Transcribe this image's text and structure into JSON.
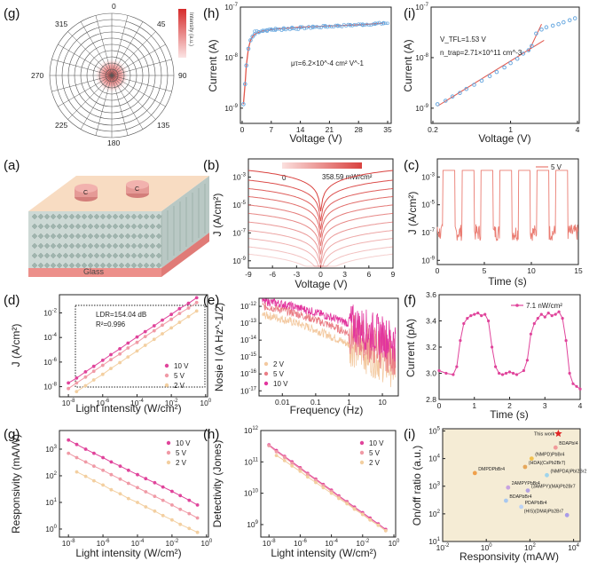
{
  "chart_data": [
    {
      "id": "g_top",
      "panel_label": "(g)",
      "type": "polar-heatmap",
      "angle_labels": [
        "0",
        "45",
        "90",
        "135",
        "180",
        "225",
        "270",
        "315"
      ],
      "colorbar_label": "Intensity (a.u.)",
      "colors": {
        "hot": "#d62b2b",
        "grid": "#555555"
      }
    },
    {
      "id": "h_top",
      "panel_label": "(h)",
      "type": "scatter",
      "xlabel": "Voltage (V)",
      "ylabel": "Current (A)",
      "xticks": [
        "0",
        "7",
        "14",
        "21",
        "28",
        "35"
      ],
      "yticks": [
        "10^-9",
        "10^-8",
        "10^-7"
      ],
      "xlim": [
        0,
        35
      ],
      "ylog": true,
      "annotation": "μτ=6.2×10^-4 cm² V^-1",
      "x": [
        0.3,
        0.7,
        1.0,
        1.5,
        2,
        2.5,
        3,
        4,
        5,
        6,
        7,
        8,
        10,
        12,
        14,
        17,
        20,
        23,
        26,
        29,
        32,
        34
      ],
      "y": [
        1.2e-09,
        3e-09,
        7e-09,
        1.5e-08,
        2.2e-08,
        2.6e-08,
        2.9e-08,
        3.2e-08,
        3.4e-08,
        3.5e-08,
        3.6e-08,
        3.7e-08,
        3.8e-08,
        3.9e-08,
        4e-08,
        4.1e-08,
        4.2e-08,
        4.3e-08,
        4.4e-08,
        4.5e-08,
        4.7e-08,
        4.8e-08
      ],
      "colors": {
        "point": "#6aa9e0",
        "fit": "#e2574c"
      }
    },
    {
      "id": "i_top",
      "panel_label": "(i)",
      "type": "scatter",
      "xlabel": "Voltage (V)",
      "ylabel": "Current (A)",
      "xticks": [
        "0.2",
        "1",
        "4"
      ],
      "yticks": [
        "10^-9",
        "10^-8",
        "10^-7"
      ],
      "xlim": [
        0.2,
        4
      ],
      "xlog": true,
      "ylog": true,
      "annotation_lines": [
        "V_TFL=1.53 V",
        "n_trap=2.71×10^11 cm^-3"
      ],
      "x": [
        0.22,
        0.26,
        0.3,
        0.35,
        0.4,
        0.47,
        0.55,
        0.65,
        0.75,
        0.88,
        1.0,
        1.15,
        1.3,
        1.45,
        1.55,
        1.7,
        1.9,
        2.1,
        2.4,
        2.7,
        3.0,
        3.4,
        3.8
      ],
      "y": [
        1.2e-09,
        1.4e-09,
        1.7e-09,
        2e-09,
        2.4e-09,
        2.9e-09,
        3.5e-09,
        4.3e-09,
        5.2e-09,
        6.4e-09,
        7.8e-09,
        9.5e-09,
        1.2e-08,
        1.4e-08,
        1.7e-08,
        3e-08,
        3.6e-08,
        4e-08,
        4.3e-08,
        4.6e-08,
        5e-08,
        5.5e-08,
        6e-08
      ],
      "colors": {
        "point": "#6aa9e0",
        "fit": "#e2574c"
      }
    },
    {
      "id": "a",
      "panel_label": "(a)",
      "type": "device-schematic",
      "electrode_labels": [
        "C",
        "C"
      ],
      "substrate_label": "Glass",
      "colors": {
        "top": "#f8dcc2",
        "perovskite": "#cdd9d5",
        "glass": "#f2a9a4",
        "electrode": "#e59a96"
      }
    },
    {
      "id": "b",
      "panel_label": "(b)",
      "type": "line",
      "xlabel": "Voltage (V)",
      "ylabel": "J (A/cm²)",
      "xticks": [
        "-9",
        "-6",
        "-3",
        "0",
        "3",
        "6",
        "9"
      ],
      "yticks": [
        "10^-9",
        "10^-7",
        "10^-5",
        "10^-3"
      ],
      "xlim": [
        -9,
        9
      ],
      "ylog": true,
      "colorbar_min": "0",
      "colorbar_max": "358.59 mW/cm²",
      "series": [
        {
          "y_at_9V": 3e-09
        },
        {
          "y_at_9V": 1e-08
        },
        {
          "y_at_9V": 4e-08
        },
        {
          "y_at_9V": 1.5e-07
        },
        {
          "y_at_9V": 6e-07
        },
        {
          "y_at_9V": 2.5e-06
        },
        {
          "y_at_9V": 1e-05
        },
        {
          "y_at_9V": 4e-05
        },
        {
          "y_at_9V": 0.00015
        },
        {
          "y_at_9V": 0.0006
        },
        {
          "y_at_9V": 0.003
        }
      ],
      "colors": {
        "line": "#d9423f"
      }
    },
    {
      "id": "c",
      "panel_label": "(c)",
      "type": "line",
      "xlabel": "Time (s)",
      "ylabel": "J (A/cm²)",
      "xticks": [
        "0",
        "5",
        "10",
        "15"
      ],
      "yticks": [
        "10^-9",
        "10^-7",
        "10^-5",
        "10^-3"
      ],
      "xlim": [
        0,
        15
      ],
      "ylog": true,
      "legend": [
        "5 V"
      ],
      "on_periods": [
        [
          0.6,
          1.9
        ],
        [
          2.6,
          3.9
        ],
        [
          4.6,
          5.9
        ],
        [
          6.6,
          7.9
        ],
        [
          8.6,
          9.9
        ],
        [
          10.6,
          11.9
        ],
        [
          12.6,
          13.9
        ]
      ],
      "on_value": 0.003,
      "off_value": 1e-07,
      "colors": {
        "line": "#ea7c72"
      }
    },
    {
      "id": "d",
      "panel_label": "(d)",
      "type": "scatter",
      "xlabel": "Light intensity (W/cm²)",
      "ylabel": "J (A/cm²)",
      "xticks": [
        "10^-8",
        "10^-6",
        "10^-4",
        "10^-2",
        "10^0"
      ],
      "yticks": [
        "10^-8",
        "10^-6",
        "10^-4",
        "10^-2"
      ],
      "xlog": true,
      "ylog": true,
      "annotation_lines": [
        "LDR=154.04 dB",
        "R²=0.996"
      ],
      "series": [
        {
          "name": "10 V",
          "x": [
            1e-08,
            3e-08,
            1e-07,
            3e-07,
            1e-06,
            3e-06,
            1e-05,
            3e-05,
            0.0001,
            0.0003,
            0.001,
            0.003,
            0.01,
            0.03,
            0.1,
            0.3
          ],
          "y": [
            2e-08,
            5e-08,
            1.6e-07,
            4.5e-07,
            1.4e-06,
            4e-06,
            1.2e-05,
            3.5e-05,
            0.00011,
            0.0003,
            0.0009,
            0.0026,
            0.0075,
            0.022,
            0.06,
            0.17
          ]
        },
        {
          "name": "5 V",
          "x": [
            1e-08,
            3e-08,
            1e-07,
            3e-07,
            1e-06,
            3e-06,
            1e-05,
            3e-05,
            0.0001,
            0.0003,
            0.001,
            0.003,
            0.01,
            0.03,
            0.1,
            0.3
          ],
          "y": [
            7e-09,
            2e-08,
            6e-08,
            1.8e-07,
            5.5e-07,
            1.6e-06,
            4.5e-06,
            1.4e-05,
            4e-05,
            0.00012,
            0.00035,
            0.001,
            0.003,
            0.009,
            0.025,
            0.07
          ]
        },
        {
          "name": "2 V",
          "x": [
            3e-08,
            1e-07,
            3e-07,
            1e-06,
            3e-06,
            1e-05,
            3e-05,
            0.0001,
            0.0003,
            0.001,
            0.003,
            0.01,
            0.03,
            0.1,
            0.3
          ],
          "y": [
            4e-09,
            1.2e-08,
            3.5e-08,
            1e-07,
            3e-07,
            9e-07,
            2.6e-06,
            8e-06,
            2.3e-05,
            7e-05,
            0.0002,
            0.0006,
            0.0017,
            0.005,
            0.014
          ]
        }
      ],
      "colors": {
        "10 V": "#e0449b",
        "5 V": "#f09aa6",
        "2 V": "#f3cfa0"
      }
    },
    {
      "id": "e",
      "panel_label": "(e)",
      "type": "line",
      "xlabel": "Frequency (Hz)",
      "ylabel": "Nosie I (A Hz^-1/2)",
      "xticks": [
        "0.01",
        "0.1",
        "1",
        "10"
      ],
      "yticks": [
        "10^-17",
        "10^-16",
        "10^-15",
        "10^-14",
        "10^-13",
        "10^-12"
      ],
      "xlog": true,
      "ylog": true,
      "series": [
        {
          "name": "2 V"
        },
        {
          "name": "5 V"
        },
        {
          "name": "10 V"
        }
      ],
      "colors": {
        "2 V": "#f3c9a0",
        "5 V": "#ea7e86",
        "10 V": "#e2359e"
      }
    },
    {
      "id": "f",
      "panel_label": "(f)",
      "type": "line",
      "xlabel": "Time (s)",
      "ylabel": "Current (pA)",
      "xticks": [
        "0",
        "1",
        "2",
        "3",
        "4"
      ],
      "yticks": [
        "2.8",
        "3.0",
        "3.2",
        "3.4",
        "3.6"
      ],
      "xlim": [
        0,
        4
      ],
      "ylim": [
        2.8,
        3.6
      ],
      "legend": [
        "7.1 nW/cm²"
      ],
      "x": [
        0,
        0.2,
        0.4,
        0.5,
        0.6,
        0.7,
        0.8,
        0.9,
        1.0,
        1.1,
        1.2,
        1.3,
        1.4,
        1.5,
        1.6,
        1.7,
        1.8,
        1.9,
        2.0,
        2.1,
        2.2,
        2.4,
        2.5,
        2.6,
        2.7,
        2.8,
        2.9,
        3.0,
        3.1,
        3.2,
        3.3,
        3.4,
        3.5,
        3.6,
        3.7,
        3.8,
        3.9,
        4.0
      ],
      "y": [
        3.02,
        3.0,
        2.99,
        3.05,
        3.25,
        3.38,
        3.42,
        3.44,
        3.45,
        3.46,
        3.44,
        3.45,
        3.4,
        3.2,
        3.05,
        3.0,
        2.99,
        3.0,
        3.01,
        3.0,
        2.99,
        3.02,
        3.1,
        3.3,
        3.38,
        3.42,
        3.45,
        3.43,
        3.46,
        3.44,
        3.45,
        3.47,
        3.42,
        3.25,
        3.0,
        2.92,
        2.9,
        2.88
      ],
      "colors": {
        "line": "#e0449b"
      }
    },
    {
      "id": "g_bottom",
      "panel_label": "(g)",
      "type": "scatter",
      "xlabel": "Light intensity (W/cm²)",
      "ylabel": "Responsivity (mA/W)",
      "xticks": [
        "10^-8",
        "10^-6",
        "10^-4",
        "10^-2",
        "10^0"
      ],
      "yticks": [
        "10^0",
        "10^1",
        "10^2",
        "10^3"
      ],
      "xlog": true,
      "ylog": true,
      "series": [
        {
          "name": "10 V",
          "x": [
            1e-08,
            3e-08,
            1e-07,
            3e-07,
            1e-06,
            3e-06,
            1e-05,
            3e-05,
            0.0001,
            0.0003,
            0.001,
            0.003,
            0.01,
            0.03,
            0.1,
            0.3
          ],
          "y": [
            2200,
            1500,
            1000,
            700,
            480,
            330,
            230,
            160,
            110,
            78,
            55,
            38,
            26,
            18,
            12,
            8
          ]
        },
        {
          "name": "5 V",
          "x": [
            1e-08,
            3e-08,
            1e-07,
            3e-07,
            1e-06,
            3e-06,
            1e-05,
            3e-05,
            0.0001,
            0.0003,
            0.001,
            0.003,
            0.01,
            0.03,
            0.1,
            0.3
          ],
          "y": [
            700,
            480,
            330,
            230,
            160,
            110,
            75,
            52,
            36,
            25,
            17,
            12,
            8,
            5.5,
            3.8,
            2.6
          ]
        },
        {
          "name": "2 V",
          "x": [
            3e-08,
            1e-07,
            3e-07,
            1e-06,
            3e-06,
            1e-05,
            3e-05,
            0.0001,
            0.0003,
            0.001,
            0.003,
            0.01,
            0.03,
            0.1,
            0.3
          ],
          "y": [
            140,
            95,
            65,
            45,
            30,
            21,
            14,
            10,
            6.8,
            4.7,
            3.2,
            2.2,
            1.5,
            1.05,
            0.75
          ]
        }
      ],
      "colors": {
        "10 V": "#e0449b",
        "5 V": "#f09aa6",
        "2 V": "#f3cfa0"
      }
    },
    {
      "id": "h_bottom",
      "panel_label": "(h)",
      "type": "scatter",
      "xlabel": "Light intensity (W/cm²)",
      "ylabel": "Detectivity (Jones)",
      "xticks": [
        "10^-8",
        "10^-6",
        "10^-4",
        "10^-2",
        "10^0"
      ],
      "yticks": [
        "10^9",
        "10^10",
        "10^11",
        "10^12"
      ],
      "xlog": true,
      "ylog": true,
      "series": [
        {
          "name": "10 V",
          "x": [
            1e-08,
            3e-08,
            1e-07,
            3e-07,
            1e-06,
            3e-06,
            1e-05,
            3e-05,
            0.0001,
            0.0003,
            0.001,
            0.003,
            0.01,
            0.03,
            0.1,
            0.3
          ],
          "y": [
            350000000000.0,
            230000000000.0,
            150000000000.0,
            100000000000.0,
            65000000000.0,
            43000000000.0,
            28000000000.0,
            19000000000.0,
            12500000000.0,
            8200000000.0,
            5400000000.0,
            3600000000.0,
            2400000000.0,
            1600000000.0,
            1050000000.0,
            700000000.0
          ]
        },
        {
          "name": "5 V",
          "x": [
            1e-08,
            3e-08,
            1e-07,
            3e-07,
            1e-06,
            3e-06,
            1e-05,
            3e-05,
            0.0001,
            0.0003,
            0.001,
            0.003,
            0.01,
            0.03,
            0.1,
            0.3
          ],
          "y": [
            330000000000.0,
            210000000000.0,
            140000000000.0,
            92000000000.0,
            60000000000.0,
            40000000000.0,
            26000000000.0,
            17500000000.0,
            11500000000.0,
            7600000000.0,
            5000000000.0,
            3300000000.0,
            2200000000.0,
            1450000000.0,
            960000000.0,
            640000000.0
          ]
        },
        {
          "name": "2 V",
          "x": [
            3e-08,
            1e-07,
            3e-07,
            1e-06,
            3e-06,
            1e-05,
            3e-05,
            0.0001,
            0.0003,
            0.001,
            0.003,
            0.01,
            0.03,
            0.1,
            0.3
          ],
          "y": [
            160000000000.0,
            110000000000.0,
            74000000000.0,
            50000000000.0,
            33000000000.0,
            22000000000.0,
            15000000000.0,
            10000000000.0,
            6800000000.0,
            4600000000.0,
            3100000000.0,
            2100000000.0,
            1400000000.0,
            950000000.0,
            640000000.0
          ]
        }
      ],
      "colors": {
        "10 V": "#e0449b",
        "5 V": "#f09aa6",
        "2 V": "#f3cfa0"
      }
    },
    {
      "id": "i_bottom",
      "panel_label": "(i)",
      "type": "scatter",
      "xlabel": "Responsivity (mA/W)",
      "ylabel": "On/off ratio (a.u.)",
      "xticks": [
        "10^-2",
        "10^0",
        "10^2",
        "10^4"
      ],
      "yticks": [
        "10^1",
        "10^2",
        "10^3",
        "10^4",
        "10^5"
      ],
      "xlog": true,
      "ylog": true,
      "points": [
        {
          "label": "This work",
          "x": 2000,
          "y": 80000,
          "color": "#e02424",
          "marker": "star"
        },
        {
          "label": "BDAPbI4",
          "x": 1500,
          "y": 25000,
          "color": "#f19a9a",
          "marker": "circle"
        },
        {
          "label": "(NMPD)PbBr4",
          "x": 120,
          "y": 10000,
          "color": "#f2c14e",
          "marker": "circle"
        },
        {
          "label": "(HDA)(CsPb2Br7)",
          "x": 60,
          "y": 5000,
          "color": "#e6a75a",
          "marker": "circle"
        },
        {
          "label": "DMPDPbBr4",
          "x": 0.3,
          "y": 3000,
          "color": "#f0a04b",
          "marker": "circle"
        },
        {
          "label": "(NMPDA)PbI2Br2",
          "x": 600,
          "y": 2500,
          "color": "#9fd4ec",
          "marker": "circle"
        },
        {
          "label": "2AMPYPbBr4",
          "x": 10,
          "y": 900,
          "color": "#c7a2e0",
          "marker": "circle"
        },
        {
          "label": "(3AMPY)(MA)Pb2Br7",
          "x": 80,
          "y": 700,
          "color": "#b3a2e0",
          "marker": "circle"
        },
        {
          "label": "BDAPbBr4",
          "x": 8,
          "y": 300,
          "color": "#a8c8f0",
          "marker": "circle"
        },
        {
          "label": "PDAPbBr4",
          "x": 40,
          "y": 180,
          "color": "#bcd3f5",
          "marker": "circle"
        },
        {
          "label": "(HIS)(DMA)Pb2Br7",
          "x": 5000,
          "y": 90,
          "color": "#a99be8",
          "marker": "circle"
        }
      ],
      "colors": {
        "background": "#f5ecd5"
      }
    }
  ]
}
